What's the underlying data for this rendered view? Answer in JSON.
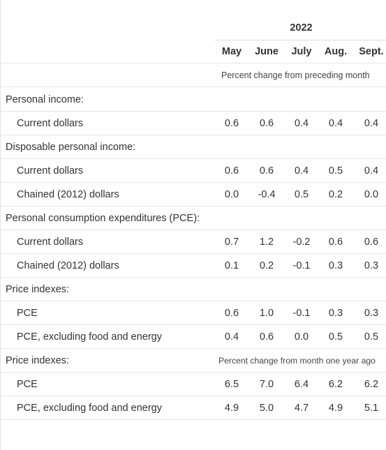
{
  "year_label": "2022",
  "columns": [
    "May",
    "June",
    "July",
    "Aug.",
    "Sept."
  ],
  "unit_note_1": "Percent change from preceding month",
  "unit_note_2": "Percent change from month one year ago",
  "rows": [
    {
      "label": "Personal income:",
      "indent": 0,
      "values": []
    },
    {
      "label": "Current dollars",
      "indent": 1,
      "values": [
        "0.6",
        "0.6",
        "0.4",
        "0.4",
        "0.4"
      ]
    },
    {
      "label": "Disposable personal income:",
      "indent": 0,
      "values": []
    },
    {
      "label": "Current dollars",
      "indent": 1,
      "values": [
        "0.6",
        "0.6",
        "0.4",
        "0.5",
        "0.4"
      ]
    },
    {
      "label": "Chained (2012) dollars",
      "indent": 1,
      "values": [
        "0.0",
        "-0.4",
        "0.5",
        "0.2",
        "0.0"
      ]
    },
    {
      "label": "Personal consumption expenditures (PCE):",
      "indent": 0,
      "values": []
    },
    {
      "label": "Current dollars",
      "indent": 1,
      "values": [
        "0.7",
        "1.2",
        "-0.2",
        "0.6",
        "0.6"
      ]
    },
    {
      "label": "Chained (2012) dollars",
      "indent": 1,
      "values": [
        "0.1",
        "0.2",
        "-0.1",
        "0.3",
        "0.3"
      ]
    },
    {
      "label": "Price indexes:",
      "indent": 0,
      "values": []
    },
    {
      "label": "PCE",
      "indent": 1,
      "values": [
        "0.6",
        "1.0",
        "-0.1",
        "0.3",
        "0.3"
      ]
    },
    {
      "label": "PCE, excluding food and energy",
      "indent": 1,
      "values": [
        "0.4",
        "0.6",
        "0.0",
        "0.5",
        "0.5"
      ]
    },
    {
      "label": "Price indexes:",
      "indent": 0,
      "values": [],
      "note": true
    },
    {
      "label": "PCE",
      "indent": 1,
      "values": [
        "6.5",
        "7.0",
        "6.4",
        "6.2",
        "6.2"
      ]
    },
    {
      "label": "PCE, excluding food and energy",
      "indent": 1,
      "values": [
        "4.9",
        "5.0",
        "4.7",
        "4.9",
        "5.1"
      ]
    }
  ]
}
